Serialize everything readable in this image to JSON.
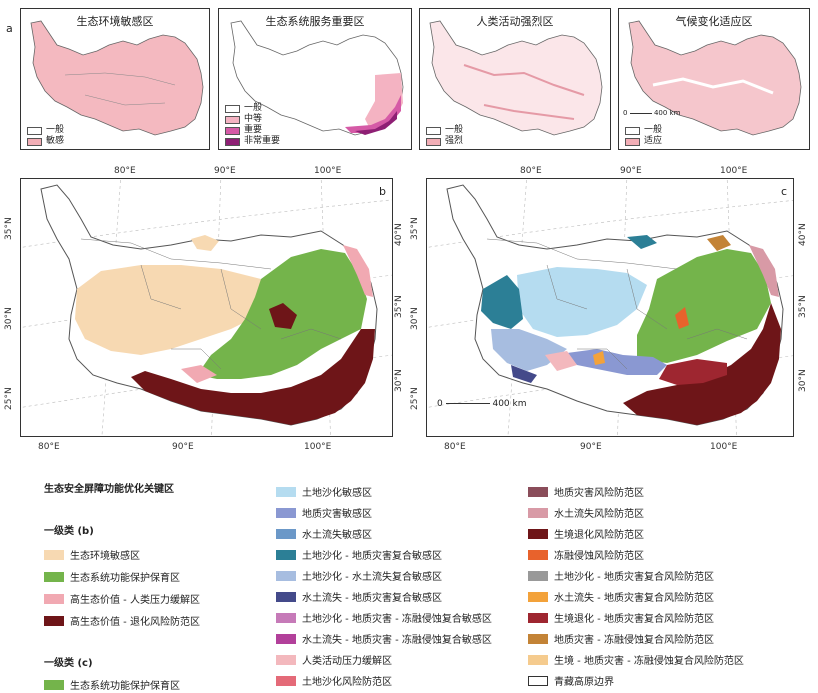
{
  "panel_a_label": "a",
  "panel_b_label": "b",
  "panel_c_label": "c",
  "small_maps": [
    {
      "title": "生态环境敏感区",
      "legend": [
        {
          "label": "一般",
          "color": "#ffffff"
        },
        {
          "label": "敏感",
          "color": "#f2aeb6"
        }
      ]
    },
    {
      "title": "生态系统服务重要区",
      "legend": [
        {
          "label": "一般",
          "color": "#ffffff"
        },
        {
          "label": "中等",
          "color": "#f4b3c2"
        },
        {
          "label": "重要",
          "color": "#d55aa6"
        },
        {
          "label": "非常重要",
          "color": "#8e1f74"
        }
      ]
    },
    {
      "title": "人类活动强烈区",
      "legend": [
        {
          "label": "一般",
          "color": "#ffffff"
        },
        {
          "label": "强烈",
          "color": "#f2aeb6"
        }
      ]
    },
    {
      "title": "气候变化适应区",
      "legend": [
        {
          "label": "一般",
          "color": "#ffffff"
        },
        {
          "label": "适应",
          "color": "#f2aeb6"
        }
      ],
      "scale": {
        "zero": "0",
        "dist": "400 km"
      }
    }
  ],
  "map_b": {
    "top_ticks": [
      "80°E",
      "90°E",
      "100°E"
    ],
    "bottom_ticks": [
      "80°E",
      "90°E",
      "100°E"
    ],
    "left_ticks": [
      "35°N",
      "30°N",
      "25°N"
    ],
    "right_ticks": [
      "40°N",
      "35°N",
      "30°N"
    ]
  },
  "map_c": {
    "top_ticks": [
      "80°E",
      "90°E",
      "100°E"
    ],
    "bottom_ticks": [
      "80°E",
      "90°E",
      "100°E"
    ],
    "left_ticks": [
      "35°N",
      "30°N",
      "25°N"
    ],
    "right_ticks": [
      "40°N",
      "35°N",
      "30°N"
    ],
    "scale": {
      "zero": "0",
      "dist": "400 km"
    }
  },
  "legend": {
    "main_title": "生态安全屏障功能优化关键区",
    "level1_b_title": "一级类 (b)",
    "level1_b_items": [
      {
        "label": "生态环境敏感区",
        "color": "#f7d9b2"
      },
      {
        "label": "生态系统功能保护保育区",
        "color": "#74b44b"
      },
      {
        "label": "高生态价值 - 人类压力缓解区",
        "color": "#f1a9b2"
      },
      {
        "label": "高生态价值 - 退化风险防范区",
        "color": "#6e1518"
      }
    ],
    "level1_c_title": "一级类 (c)",
    "level1_c_items": [
      {
        "label": "生态系统功能保护保育区",
        "color": "#74b44b"
      }
    ],
    "col2_items": [
      {
        "label": "土地沙化敏感区",
        "color": "#b5dcf0"
      },
      {
        "label": "地质灾害敏感区",
        "color": "#8a98d2"
      },
      {
        "label": "水土流失敏感区",
        "color": "#6b98c8"
      },
      {
        "label": "土地沙化 - 地质灾害复合敏感区",
        "color": "#2c7f96"
      },
      {
        "label": "土地沙化 - 水土流失复合敏感区",
        "color": "#a7bde0"
      },
      {
        "label": "水土流失 - 地质灾害复合敏感区",
        "color": "#444a8a"
      },
      {
        "label": "土地沙化 - 地质灾害 - 冻融侵蚀复合敏感区",
        "color": "#c67ab8"
      },
      {
        "label": "水土流失 - 地质灾害 - 冻融侵蚀复合敏感区",
        "color": "#b2409a"
      },
      {
        "label": "人类活动压力缓解区",
        "color": "#f3b8bd"
      },
      {
        "label": "土地沙化风险防范区",
        "color": "#e46a78"
      }
    ],
    "col3_items": [
      {
        "label": "地质灾害风险防范区",
        "color": "#8a4d5a"
      },
      {
        "label": "水土流失风险防范区",
        "color": "#d89aa6"
      },
      {
        "label": "生境退化风险防范区",
        "color": "#6e1518"
      },
      {
        "label": "冻融侵蚀风险防范区",
        "color": "#e8622c"
      },
      {
        "label": "土地沙化 - 地质灾害复合风险防范区",
        "color": "#999999"
      },
      {
        "label": "水土流失 - 地质灾害复合风险防范区",
        "color": "#f3a23a"
      },
      {
        "label": "生境退化 - 地质灾害复合风险防范区",
        "color": "#9e2630"
      },
      {
        "label": "地质灾害 - 冻融侵蚀复合风险防范区",
        "color": "#c38336"
      },
      {
        "label": "生境 - 地质灾害 - 冻融侵蚀复合风险防范区",
        "color": "#f5cb8e"
      },
      {
        "label": "青藏高原边界",
        "color": "#ffffff"
      }
    ]
  }
}
